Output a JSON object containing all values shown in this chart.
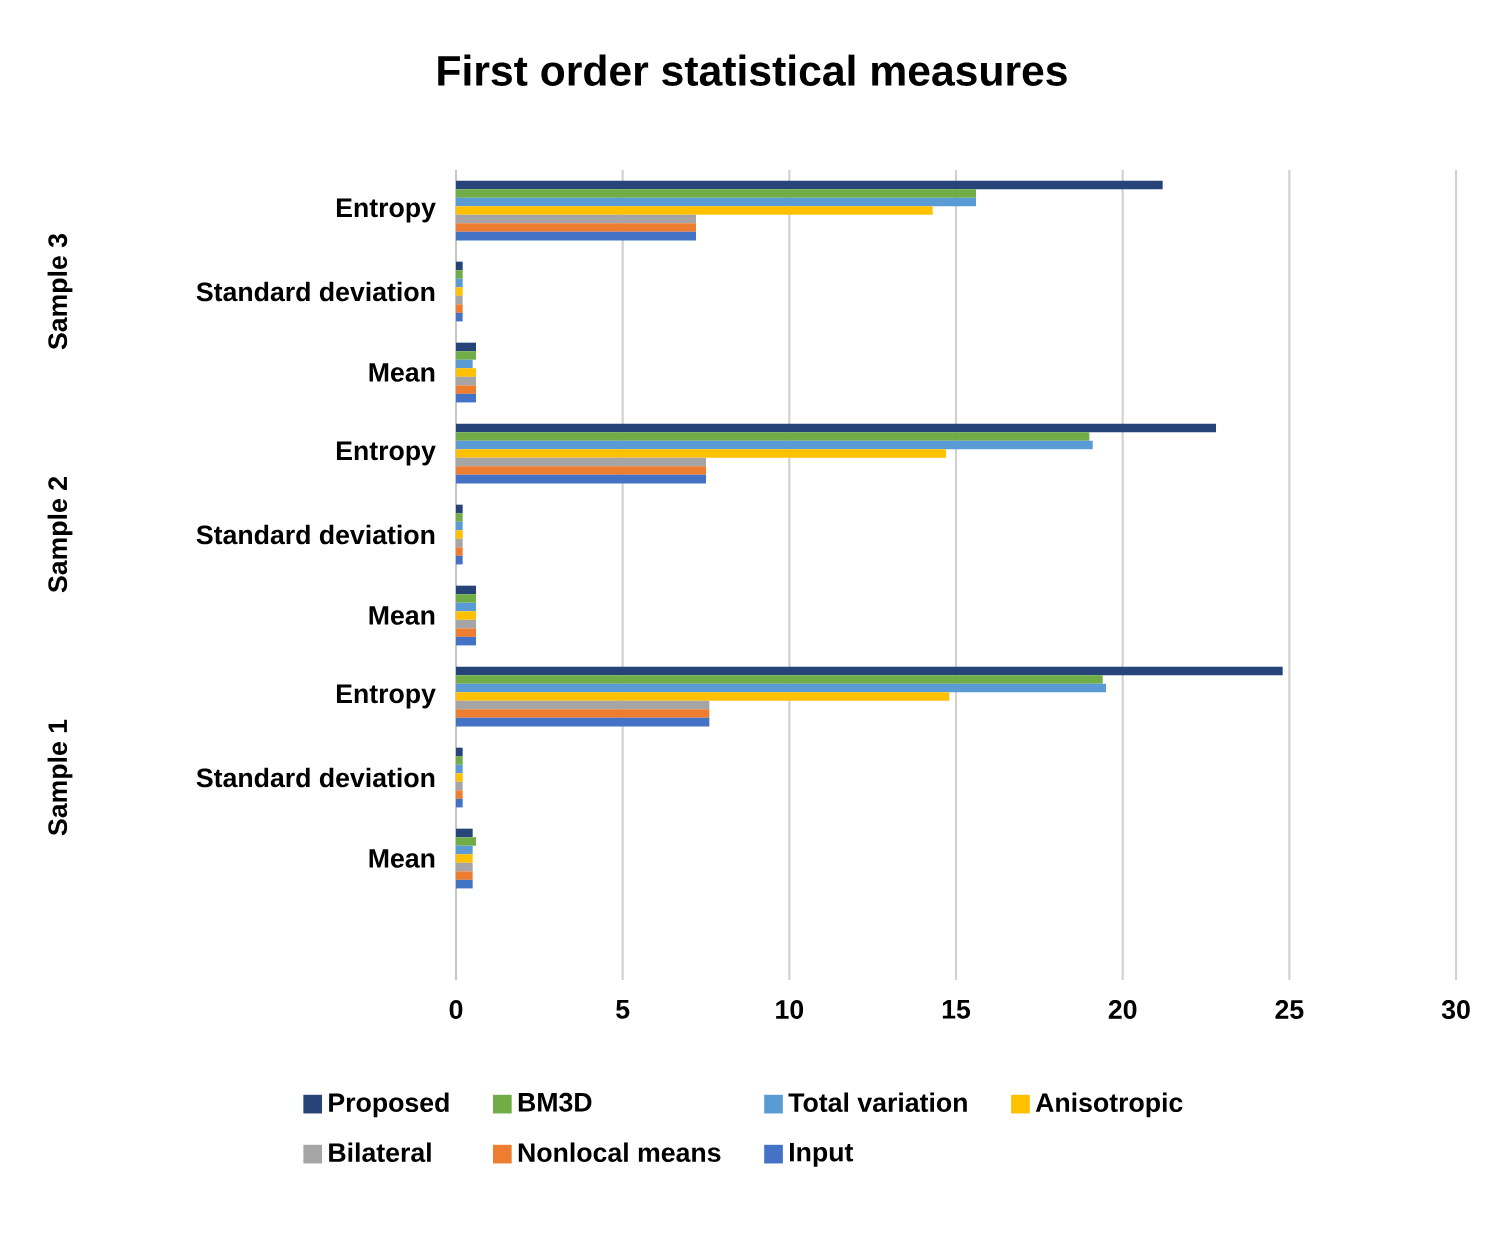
{
  "chart_data": {
    "type": "bar",
    "orientation": "horizontal",
    "title": "First order statistical measures",
    "categories": [
      "Entropy",
      "Standard deviation",
      "Mean",
      "Entropy",
      "Standard deviation",
      "Mean",
      "Entropy",
      "Standard deviation",
      "Mean",
      null
    ],
    "annotations": [
      "Sample 3",
      "Sample 2",
      "Sample 1"
    ],
    "series": [
      {
        "name": "Proposed",
        "color": "#264478",
        "values": [
          21.2,
          0.2,
          0.6,
          22.8,
          0.2,
          0.6,
          24.8,
          0.2,
          0.5,
          null
        ]
      },
      {
        "name": "BM3D",
        "color": "#70ad47",
        "values": [
          15.6,
          0.2,
          0.6,
          19.0,
          0.2,
          0.6,
          19.4,
          0.2,
          0.6,
          null
        ]
      },
      {
        "name": "Total variation",
        "color": "#5b9bd5",
        "values": [
          15.6,
          0.2,
          0.5,
          19.1,
          0.2,
          0.6,
          19.5,
          0.2,
          0.5,
          null
        ]
      },
      {
        "name": "Anisotropic",
        "color": "#ffc000",
        "values": [
          14.3,
          0.2,
          0.6,
          14.7,
          0.2,
          0.6,
          14.8,
          0.2,
          0.5,
          null
        ]
      },
      {
        "name": "Bilateral",
        "color": "#a5a5a5",
        "values": [
          7.2,
          0.2,
          0.6,
          7.5,
          0.2,
          0.6,
          7.6,
          0.2,
          0.5,
          null
        ]
      },
      {
        "name": "Nonlocal means",
        "color": "#ed7d31",
        "values": [
          7.2,
          0.2,
          0.6,
          7.5,
          0.2,
          0.6,
          7.6,
          0.2,
          0.5,
          null
        ]
      },
      {
        "name": "Input",
        "color": "#4472c4",
        "values": [
          7.2,
          0.2,
          0.6,
          7.5,
          0.2,
          0.6,
          7.6,
          0.2,
          0.5,
          null
        ]
      }
    ],
    "xlim": [
      0,
      30
    ],
    "xticks": [
      0,
      5,
      10,
      15,
      20,
      25,
      30
    ],
    "grid": "x",
    "legend": "bottom"
  }
}
